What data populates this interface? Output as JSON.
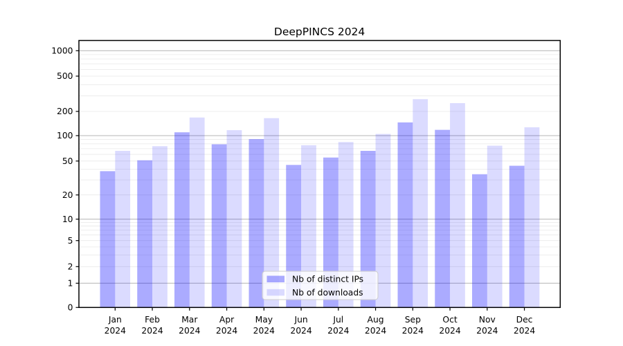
{
  "chart_data": {
    "type": "bar",
    "title": "DeepPINCS 2024",
    "categories": [
      "Jan",
      "Feb",
      "Mar",
      "Apr",
      "May",
      "Jun",
      "Jul",
      "Aug",
      "Sep",
      "Oct",
      "Nov",
      "Dec"
    ],
    "year": "2024",
    "series": [
      {
        "name": "Nb of distinct IPs",
        "base_color": "#0000FF",
        "opacity": 0.33,
        "display_color": "#ABABFF",
        "values": [
          38,
          51,
          110,
          79,
          91,
          45,
          55,
          66,
          146,
          118,
          35,
          44
        ]
      },
      {
        "name": "Nb of downloads",
        "base_color": "#0000FF",
        "opacity": 0.14,
        "display_color": "#DBDBFF",
        "values": [
          66,
          75,
          168,
          117,
          165,
          77,
          84,
          105,
          275,
          248,
          76,
          127
        ]
      }
    ],
    "yscale": "symlog",
    "yticks": [
      0,
      1,
      2,
      5,
      10,
      20,
      50,
      100,
      200,
      500,
      1000
    ],
    "ylim": [
      0,
      1320
    ],
    "xlabel": "",
    "ylabel": "",
    "grid": {
      "on": true,
      "major_values": [
        1,
        10,
        100,
        1000
      ],
      "minor_values": [
        2,
        3,
        4,
        5,
        6,
        7,
        8,
        9,
        20,
        30,
        40,
        50,
        60,
        70,
        80,
        90,
        200,
        300,
        400,
        500,
        600,
        700,
        800,
        900
      ],
      "major_color": "#b4b4b4",
      "minor_color": "#e9e9e9"
    },
    "legend": {
      "position": "lower-center"
    },
    "axis_color": "#000000",
    "legend_border_color": "#cccccc"
  }
}
